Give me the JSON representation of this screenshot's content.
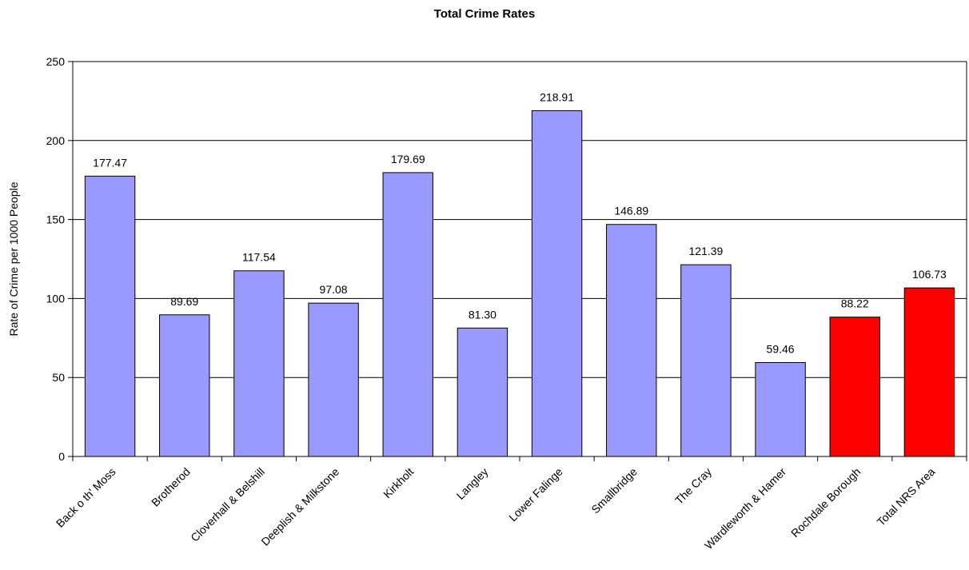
{
  "chart_data": {
    "type": "bar",
    "title": "Total Crime Rates",
    "xlabel": "",
    "ylabel": "Rate of Crime per 1000 People",
    "ylim": [
      0,
      250
    ],
    "yticks": [
      0,
      50,
      100,
      150,
      200,
      250
    ],
    "grid": true,
    "categories": [
      "Back o th' Moss",
      "Brotherod",
      "Cloverhall & Belshill",
      "Deeplish & Milkstone",
      "Kirkholt",
      "Langley",
      "Lower Falinge",
      "Smallbridge",
      "The Cray",
      "Wardleworth & Hamer",
      "Rochdale Borough",
      "Total NRS Area"
    ],
    "values": [
      177.47,
      89.69,
      117.54,
      97.08,
      179.69,
      81.3,
      218.91,
      146.89,
      121.39,
      59.46,
      88.22,
      106.73
    ],
    "value_labels": [
      "177.47",
      "89.69",
      "117.54",
      "97.08",
      "179.69",
      "81.30",
      "218.91",
      "146.89",
      "121.39",
      "59.46",
      "88.22",
      "106.73"
    ],
    "bar_colors": [
      "#9999ff",
      "#9999ff",
      "#9999ff",
      "#9999ff",
      "#9999ff",
      "#9999ff",
      "#9999ff",
      "#9999ff",
      "#9999ff",
      "#9999ff",
      "#ff0000",
      "#ff0000"
    ]
  }
}
